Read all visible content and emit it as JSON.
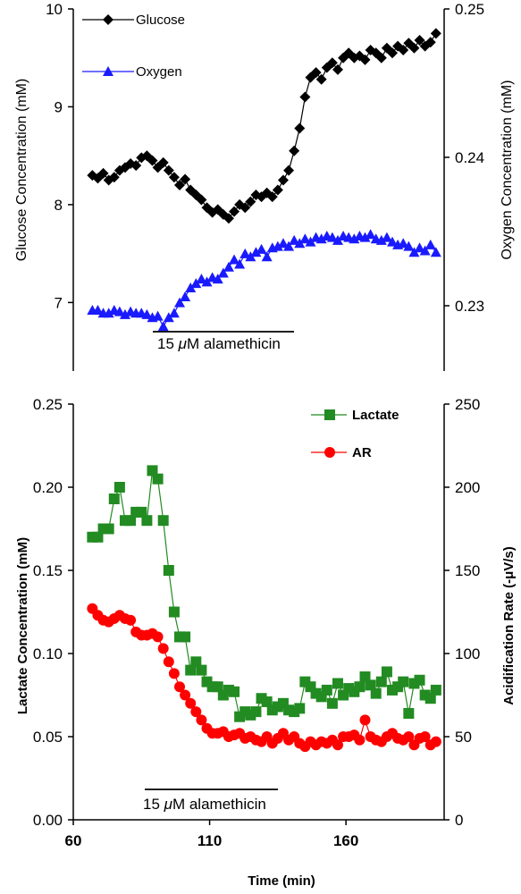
{
  "chart_data": [
    {
      "type": "line",
      "panel": "top",
      "xlim": [
        60,
        196
      ],
      "left_axis": {
        "label": "Glucose Concentration (mM)",
        "ylim": [
          6.3,
          10
        ],
        "ticks": [
          "7",
          "8",
          "9",
          "10"
        ]
      },
      "right_axis": {
        "label": "Oxygen Concentration (mM)",
        "ylim": [
          0.2256,
          0.25
        ],
        "ticks": [
          "0.23",
          "0.24",
          "0.25"
        ]
      },
      "legend_position": "top-left",
      "annotation": {
        "text_prefix": "15 ",
        "text_mu": "μ",
        "text_suffix": "M alamethicin",
        "x_range": [
          91,
          138
        ]
      },
      "series": [
        {
          "name": "Glucose",
          "axis": "left",
          "color": "#000000",
          "marker": "diamond",
          "x": [
            67,
            69,
            71,
            73,
            75,
            77,
            79,
            81,
            83,
            85,
            87,
            89,
            91,
            93,
            95,
            97,
            99,
            101,
            103,
            105,
            107,
            109,
            111,
            113,
            115,
            117,
            119,
            121,
            123,
            125,
            127,
            129,
            131,
            133,
            135,
            137,
            139,
            141,
            143,
            145,
            147,
            149,
            151,
            153,
            155,
            157,
            159,
            161,
            163,
            165,
            167,
            169,
            171,
            173,
            175,
            177,
            179,
            181,
            183,
            185,
            187,
            189,
            191,
            193
          ],
          "y": [
            8.3,
            8.27,
            8.32,
            8.25,
            8.28,
            8.35,
            8.38,
            8.42,
            8.4,
            8.48,
            8.5,
            8.45,
            8.38,
            8.43,
            8.35,
            8.28,
            8.2,
            8.26,
            8.15,
            8.1,
            8.05,
            7.97,
            7.92,
            7.95,
            7.9,
            7.86,
            7.93,
            8.0,
            7.97,
            8.03,
            8.1,
            8.08,
            8.12,
            8.08,
            8.15,
            8.25,
            8.35,
            8.55,
            8.78,
            9.1,
            9.3,
            9.35,
            9.28,
            9.4,
            9.45,
            9.38,
            9.5,
            9.55,
            9.5,
            9.52,
            9.48,
            9.58,
            9.55,
            9.5,
            9.6,
            9.55,
            9.62,
            9.58,
            9.65,
            9.6,
            9.68,
            9.62,
            9.66,
            9.75
          ]
        },
        {
          "name": "Oxygen",
          "axis": "right",
          "color": "#1a1aff",
          "marker": "triangle",
          "x": [
            67,
            69,
            71,
            73,
            75,
            77,
            79,
            81,
            83,
            85,
            87,
            89,
            91,
            93,
            95,
            97,
            99,
            101,
            103,
            105,
            107,
            109,
            111,
            113,
            115,
            117,
            119,
            121,
            123,
            125,
            127,
            129,
            131,
            133,
            135,
            137,
            139,
            141,
            143,
            145,
            147,
            149,
            151,
            153,
            155,
            157,
            159,
            161,
            163,
            165,
            167,
            169,
            171,
            173,
            175,
            177,
            179,
            181,
            183,
            185,
            187,
            189,
            191,
            193
          ],
          "y": [
            0.2297,
            0.2297,
            0.2295,
            0.2295,
            0.2297,
            0.2296,
            0.2294,
            0.2296,
            0.2295,
            0.2295,
            0.2294,
            0.2292,
            0.2293,
            0.2286,
            0.2292,
            0.2295,
            0.2302,
            0.2306,
            0.2312,
            0.2315,
            0.2318,
            0.2316,
            0.2319,
            0.2318,
            0.2322,
            0.2326,
            0.2331,
            0.2328,
            0.2335,
            0.2333,
            0.2336,
            0.2338,
            0.2333,
            0.2339,
            0.234,
            0.2342,
            0.234,
            0.2344,
            0.2342,
            0.2345,
            0.2343,
            0.2346,
            0.2345,
            0.2347,
            0.2346,
            0.2344,
            0.2347,
            0.2346,
            0.2345,
            0.2347,
            0.2346,
            0.2348,
            0.2345,
            0.2344,
            0.2346,
            0.2343,
            0.2341,
            0.2342,
            0.234,
            0.2336,
            0.2339,
            0.2337,
            0.2341,
            0.2336
          ]
        }
      ]
    },
    {
      "type": "line",
      "panel": "bottom",
      "xlim": [
        60,
        196
      ],
      "xticks": [
        "60",
        "110",
        "160"
      ],
      "xlabel": "Time (min)",
      "left_axis": {
        "label": "Lactate Concentration  (mM)",
        "ylim": [
          0,
          0.25
        ],
        "ticks": [
          "0.00",
          "0.05",
          "0.10",
          "0.15",
          "0.20",
          "0.25"
        ]
      },
      "right_axis": {
        "label": "Acidification  Rate (-μV/s)",
        "ylim": [
          0,
          250
        ],
        "ticks": [
          "0",
          "50",
          "100",
          "150",
          "200",
          "250"
        ]
      },
      "legend_position": "top-right",
      "annotation": {
        "text_prefix": "15 ",
        "text_mu": "μ",
        "text_suffix": "M alamethicin",
        "x_range": [
          84,
          136
        ]
      },
      "series": [
        {
          "name": "Lactate",
          "axis": "left",
          "color": "#228b22",
          "marker": "square",
          "x": [
            67,
            69,
            71,
            73,
            75,
            77,
            79,
            81,
            83,
            85,
            87,
            89,
            91,
            93,
            95,
            97,
            99,
            101,
            103,
            105,
            107,
            109,
            111,
            113,
            115,
            117,
            119,
            121,
            123,
            125,
            127,
            129,
            131,
            133,
            135,
            137,
            139,
            141,
            143,
            145,
            147,
            149,
            151,
            153,
            155,
            157,
            159,
            161,
            163,
            165,
            167,
            169,
            171,
            173,
            175,
            177,
            179,
            181,
            183,
            185,
            187,
            189,
            191,
            193
          ],
          "y": [
            0.17,
            0.17,
            0.175,
            0.175,
            0.193,
            0.2,
            0.18,
            0.18,
            0.185,
            0.185,
            0.18,
            0.21,
            0.205,
            0.18,
            0.15,
            0.125,
            0.11,
            0.11,
            0.09,
            0.095,
            0.09,
            0.083,
            0.08,
            0.08,
            0.075,
            0.078,
            0.077,
            0.062,
            0.065,
            0.063,
            0.065,
            0.073,
            0.071,
            0.066,
            0.068,
            0.07,
            0.066,
            0.065,
            0.067,
            0.083,
            0.08,
            0.076,
            0.074,
            0.078,
            0.07,
            0.082,
            0.075,
            0.079,
            0.077,
            0.08,
            0.086,
            0.081,
            0.076,
            0.083,
            0.089,
            0.078,
            0.08,
            0.083,
            0.064,
            0.082,
            0.084,
            0.075,
            0.073,
            0.078
          ]
        },
        {
          "name": "AR",
          "axis": "right",
          "color": "#ff0000",
          "marker": "circle",
          "x": [
            67,
            69,
            71,
            73,
            75,
            77,
            79,
            81,
            83,
            85,
            87,
            89,
            91,
            93,
            95,
            97,
            99,
            101,
            103,
            105,
            107,
            109,
            111,
            113,
            115,
            117,
            119,
            121,
            123,
            125,
            127,
            129,
            131,
            133,
            135,
            137,
            139,
            141,
            143,
            145,
            147,
            149,
            151,
            153,
            155,
            157,
            159,
            161,
            163,
            165,
            167,
            169,
            171,
            173,
            175,
            177,
            179,
            181,
            183,
            185,
            187,
            189,
            191,
            193
          ],
          "y": [
            127,
            123,
            120,
            119,
            121,
            123,
            121,
            120,
            113,
            111,
            111,
            112,
            110,
            103,
            95,
            88,
            80,
            75,
            70,
            65,
            60,
            55,
            52,
            52,
            53,
            50,
            51,
            52,
            49,
            50,
            48,
            47,
            50,
            46,
            49,
            52,
            48,
            50,
            46,
            44,
            47,
            45,
            47,
            46,
            48,
            45,
            50,
            50,
            51,
            48,
            60,
            50,
            48,
            47,
            50,
            52,
            49,
            48,
            50,
            45,
            49,
            50,
            45,
            47
          ]
        }
      ]
    }
  ]
}
